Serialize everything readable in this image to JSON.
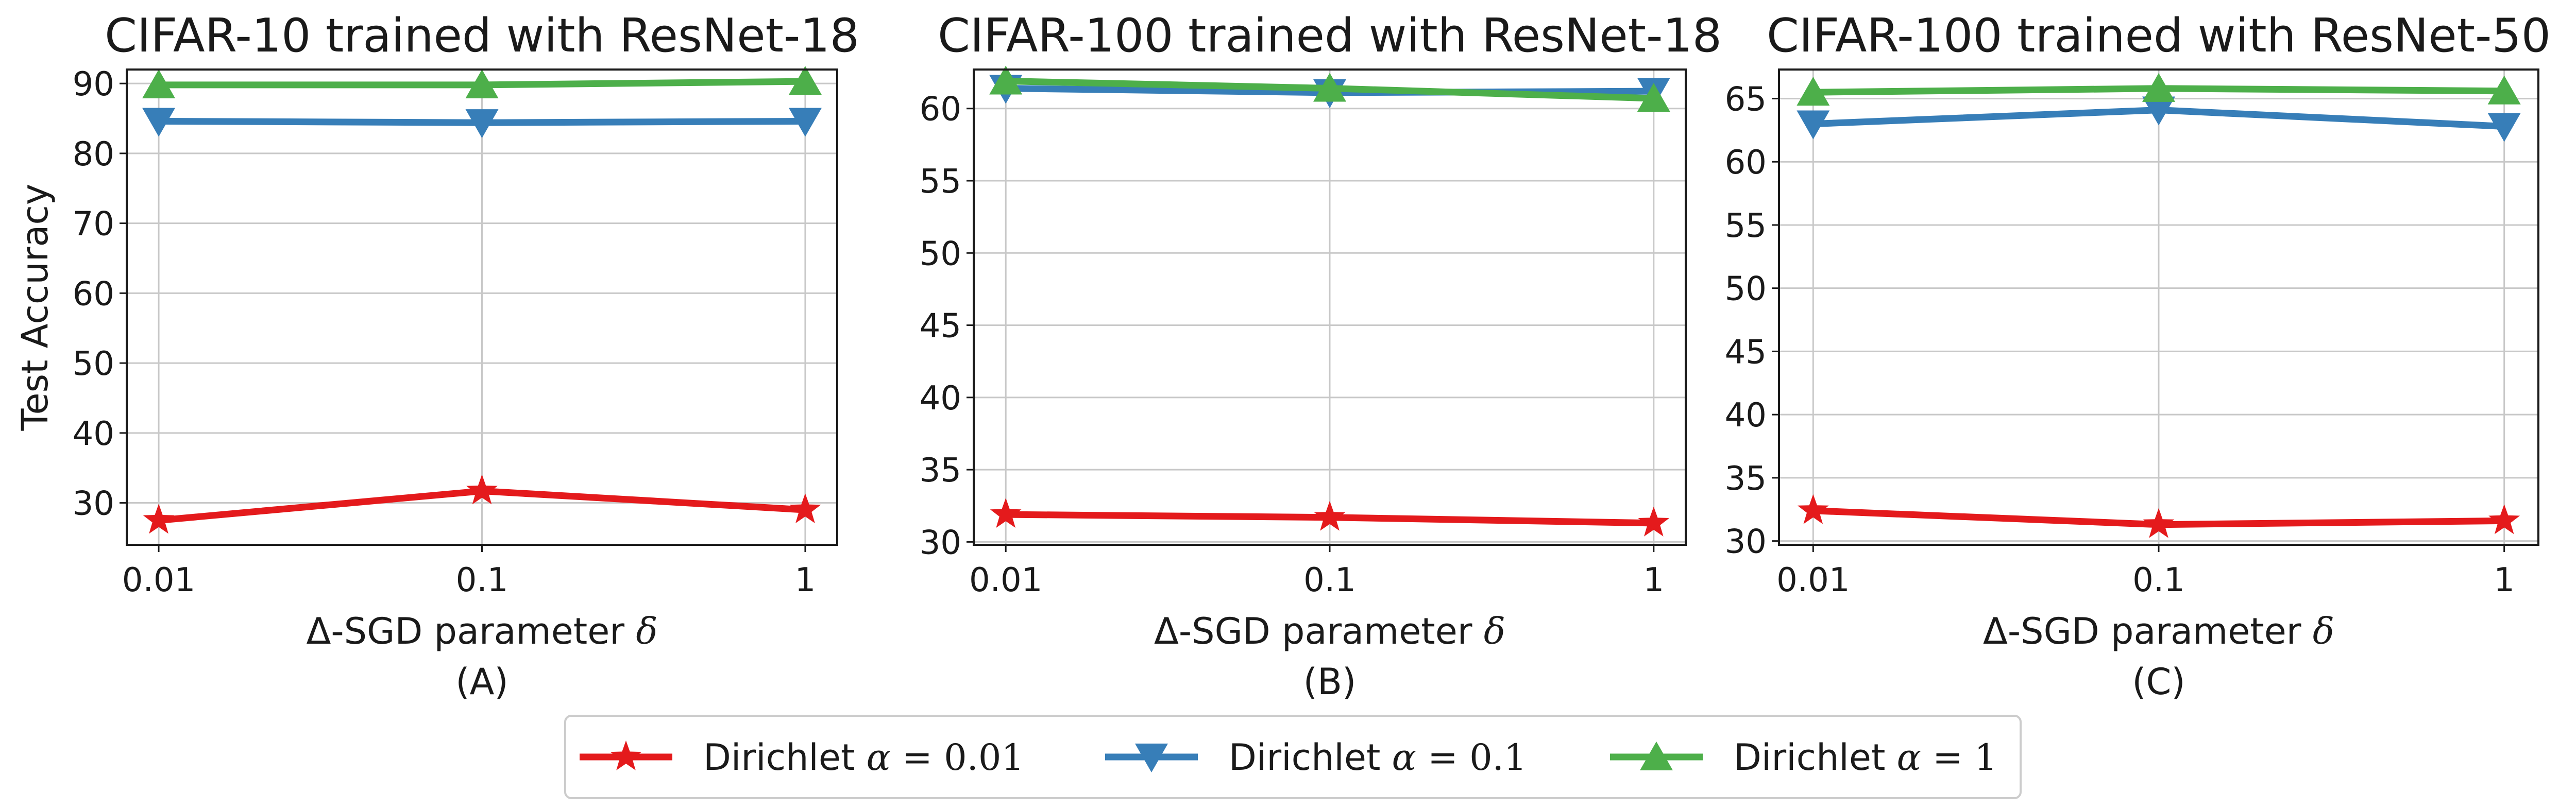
{
  "chart_data": [
    {
      "type": "line",
      "title": "CIFAR-10 trained with ResNet-18",
      "subtitle": "(A)",
      "xlabel_prefix": "Δ-SGD parameter ",
      "xlabel_symbol": "δ",
      "ylabel": "Test Accuracy",
      "x": [
        "0.01",
        "0.1",
        "1"
      ],
      "ylim": [
        24,
        92
      ],
      "yticks": [
        30,
        40,
        50,
        60,
        70,
        80,
        90
      ],
      "grid": true,
      "series": [
        {
          "name": "Dirichlet α = 0.01",
          "values": [
            27.5,
            31.7,
            29.0
          ]
        },
        {
          "name": "Dirichlet α = 0.1",
          "values": [
            84.6,
            84.4,
            84.6
          ]
        },
        {
          "name": "Dirichlet α = 1",
          "values": [
            89.8,
            89.8,
            90.3
          ]
        }
      ]
    },
    {
      "type": "line",
      "title": "CIFAR-100 trained with ResNet-18",
      "subtitle": "(B)",
      "xlabel_prefix": "Δ-SGD parameter ",
      "xlabel_symbol": "δ",
      "ylabel": "",
      "x": [
        "0.01",
        "0.1",
        "1"
      ],
      "ylim": [
        29.8,
        62.7
      ],
      "yticks": [
        30,
        35,
        40,
        45,
        50,
        55,
        60
      ],
      "grid": true,
      "series": [
        {
          "name": "Dirichlet α = 0.01",
          "values": [
            31.9,
            31.7,
            31.3
          ]
        },
        {
          "name": "Dirichlet α = 0.1",
          "values": [
            61.4,
            61.1,
            61.2
          ]
        },
        {
          "name": "Dirichlet α = 1",
          "values": [
            61.9,
            61.4,
            60.7
          ]
        }
      ]
    },
    {
      "type": "line",
      "title": "CIFAR-100 trained with ResNet-50",
      "subtitle": "(C)",
      "xlabel_prefix": "Δ-SGD parameter ",
      "xlabel_symbol": "δ",
      "ylabel": "",
      "x": [
        "0.01",
        "0.1",
        "1"
      ],
      "ylim": [
        29.7,
        67.3
      ],
      "yticks": [
        30,
        35,
        40,
        45,
        50,
        55,
        60,
        65
      ],
      "grid": true,
      "series": [
        {
          "name": "Dirichlet α = 0.01",
          "values": [
            32.4,
            31.3,
            31.6
          ]
        },
        {
          "name": "Dirichlet α = 0.1",
          "values": [
            63.0,
            64.1,
            62.8
          ]
        },
        {
          "name": "Dirichlet α = 1",
          "values": [
            65.5,
            65.8,
            65.6
          ]
        }
      ]
    }
  ],
  "legend": {
    "placement": "bottom-center",
    "entries": [
      {
        "prefix": "Dirichlet ",
        "symbol": "α",
        "eq": " = ",
        "value": "0.01",
        "color": "#e41a1c",
        "marker": "star"
      },
      {
        "prefix": "Dirichlet ",
        "symbol": "α",
        "eq": " = ",
        "value": "0.1",
        "color": "#377eb8",
        "marker": "triangle-down"
      },
      {
        "prefix": "Dirichlet ",
        "symbol": "α",
        "eq": " = ",
        "value": "1",
        "color": "#4daf4a",
        "marker": "triangle-up"
      }
    ]
  }
}
